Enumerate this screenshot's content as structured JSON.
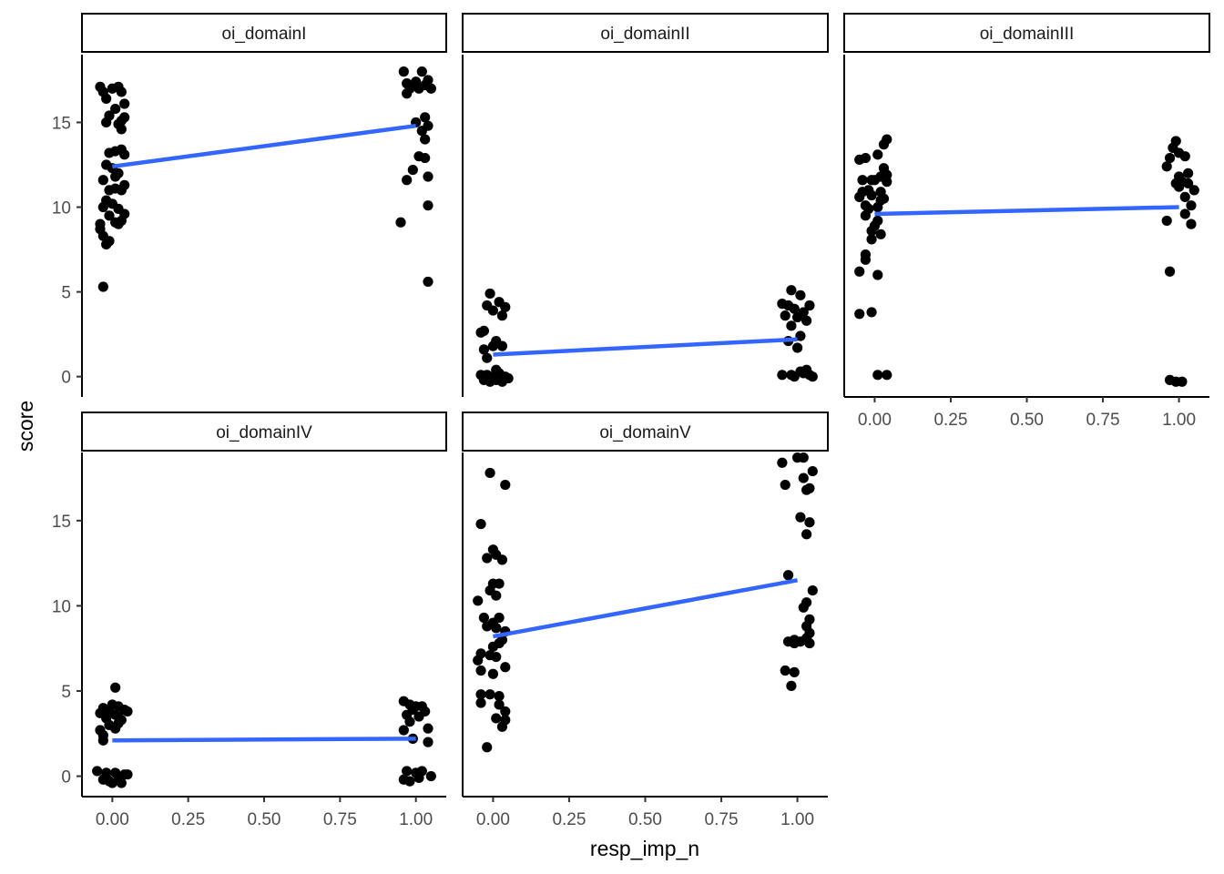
{
  "chart_data": {
    "type": "scatter",
    "xlabel": "resp_imp_n",
    "ylabel": "score",
    "x_ticks": [
      "0.00",
      "0.25",
      "0.50",
      "0.75",
      "1.00"
    ],
    "y_ticks": [
      "0",
      "5",
      "10",
      "15"
    ],
    "xlim": [
      -0.1,
      1.1
    ],
    "fit_color": "#3366FF",
    "point_color": "#000000",
    "panels": [
      {
        "name": "oi_domainI",
        "ylim": [
          -1.2,
          19
        ],
        "fit": {
          "x": [
            0,
            1
          ],
          "y": [
            12.4,
            14.8
          ]
        },
        "points": [
          [
            -0.04,
            17.1
          ],
          [
            -0.03,
            16.8
          ],
          [
            0.0,
            17.0
          ],
          [
            0.02,
            17.1
          ],
          [
            0.03,
            16.8
          ],
          [
            -0.02,
            16.4
          ],
          [
            0.04,
            16.1
          ],
          [
            0.01,
            15.8
          ],
          [
            -0.01,
            15.4
          ],
          [
            0.03,
            15.1
          ],
          [
            -0.02,
            15.0
          ],
          [
            0.04,
            15.3
          ],
          [
            0.02,
            14.9
          ],
          [
            0.03,
            14.6
          ],
          [
            -0.01,
            13.2
          ],
          [
            0.01,
            13.3
          ],
          [
            0.03,
            13.4
          ],
          [
            0.04,
            13.1
          ],
          [
            -0.02,
            12.5
          ],
          [
            0.0,
            12.3
          ],
          [
            0.02,
            12.0
          ],
          [
            -0.03,
            11.6
          ],
          [
            0.01,
            11.8
          ],
          [
            0.04,
            11.3
          ],
          [
            -0.01,
            11.0
          ],
          [
            0.01,
            11.1
          ],
          [
            0.03,
            11.0
          ],
          [
            -0.02,
            10.4
          ],
          [
            0.0,
            10.2
          ],
          [
            -0.03,
            10.0
          ],
          [
            0.02,
            9.9
          ],
          [
            0.04,
            9.6
          ],
          [
            -0.01,
            9.5
          ],
          [
            0.01,
            9.1
          ],
          [
            0.03,
            9.2
          ],
          [
            -0.04,
            9.0
          ],
          [
            0.02,
            9.0
          ],
          [
            -0.04,
            8.7
          ],
          [
            -0.03,
            8.3
          ],
          [
            -0.01,
            8.0
          ],
          [
            -0.02,
            7.8
          ],
          [
            -0.03,
            5.3
          ],
          [
            0.96,
            18.0
          ],
          [
            1.02,
            18.0
          ],
          [
            1.04,
            17.5
          ],
          [
            0.97,
            17.3
          ],
          [
            1.0,
            17.4
          ],
          [
            1.03,
            17.2
          ],
          [
            0.98,
            17.0
          ],
          [
            1.01,
            17.0
          ],
          [
            1.05,
            17.0
          ],
          [
            0.97,
            16.7
          ],
          [
            1.0,
            15.0
          ],
          [
            1.03,
            15.3
          ],
          [
            1.04,
            14.8
          ],
          [
            1.02,
            14.5
          ],
          [
            1.03,
            14.0
          ],
          [
            1.01,
            13.0
          ],
          [
            1.03,
            12.9
          ],
          [
            0.99,
            12.2
          ],
          [
            1.04,
            11.8
          ],
          [
            0.97,
            11.6
          ],
          [
            1.04,
            10.1
          ],
          [
            0.95,
            9.1
          ],
          [
            1.04,
            5.6
          ]
        ]
      },
      {
        "name": "oi_domainII",
        "ylim": [
          -1.2,
          19
        ],
        "fit": {
          "x": [
            0,
            1
          ],
          "y": [
            1.3,
            2.2
          ]
        },
        "points": [
          [
            -0.01,
            4.9
          ],
          [
            0.02,
            4.4
          ],
          [
            -0.02,
            4.2
          ],
          [
            0.04,
            4.1
          ],
          [
            0.0,
            3.9
          ],
          [
            0.03,
            3.6
          ],
          [
            -0.03,
            2.7
          ],
          [
            -0.04,
            2.6
          ],
          [
            0.01,
            2.1
          ],
          [
            0.03,
            1.8
          ],
          [
            -0.03,
            1.6
          ],
          [
            0.0,
            1.8
          ],
          [
            -0.02,
            1.1
          ],
          [
            0.01,
            0.4
          ],
          [
            -0.04,
            0.1
          ],
          [
            0.0,
            0.0
          ],
          [
            0.02,
            0.2
          ],
          [
            0.04,
            0.0
          ],
          [
            -0.03,
            -0.2
          ],
          [
            0.01,
            -0.2
          ],
          [
            0.03,
            -0.3
          ],
          [
            -0.01,
            -0.3
          ],
          [
            0.05,
            -0.1
          ],
          [
            -0.02,
            0.1
          ],
          [
            0.02,
            -0.1
          ],
          [
            0.98,
            5.1
          ],
          [
            1.01,
            4.8
          ],
          [
            0.95,
            4.3
          ],
          [
            0.97,
            4.2
          ],
          [
            1.04,
            4.2
          ],
          [
            0.99,
            4.0
          ],
          [
            1.02,
            3.8
          ],
          [
            0.96,
            3.6
          ],
          [
            1.0,
            3.5
          ],
          [
            1.03,
            3.3
          ],
          [
            0.98,
            3.0
          ],
          [
            1.01,
            2.4
          ],
          [
            0.97,
            2.1
          ],
          [
            1.0,
            1.7
          ],
          [
            0.95,
            0.1
          ],
          [
            0.98,
            0.1
          ],
          [
            1.01,
            0.3
          ],
          [
            1.03,
            0.4
          ],
          [
            1.05,
            0.0
          ],
          [
            0.99,
            0.0
          ],
          [
            1.02,
            0.2
          ],
          [
            1.04,
            0.1
          ]
        ]
      },
      {
        "name": "oi_domainIII",
        "ylim": [
          -1.2,
          19
        ],
        "fit": {
          "x": [
            0,
            1
          ],
          "y": [
            9.6,
            10.0
          ]
        },
        "points": [
          [
            0.04,
            14.0
          ],
          [
            0.03,
            13.7
          ],
          [
            0.01,
            13.1
          ],
          [
            -0.05,
            12.8
          ],
          [
            -0.03,
            12.9
          ],
          [
            0.03,
            12.3
          ],
          [
            0.04,
            11.9
          ],
          [
            -0.01,
            11.6
          ],
          [
            0.02,
            11.8
          ],
          [
            -0.04,
            11.6
          ],
          [
            0.0,
            11.6
          ],
          [
            0.04,
            11.5
          ],
          [
            -0.02,
            11.0
          ],
          [
            -0.04,
            10.9
          ],
          [
            0.02,
            10.9
          ],
          [
            -0.01,
            10.7
          ],
          [
            0.02,
            10.4
          ],
          [
            -0.05,
            10.6
          ],
          [
            0.03,
            10.5
          ],
          [
            -0.03,
            10.1
          ],
          [
            0.01,
            10.0
          ],
          [
            -0.02,
            9.9
          ],
          [
            -0.03,
            9.5
          ],
          [
            0.01,
            9.2
          ],
          [
            0.0,
            8.9
          ],
          [
            -0.01,
            8.6
          ],
          [
            0.02,
            8.4
          ],
          [
            -0.01,
            8.1
          ],
          [
            -0.03,
            7.2
          ],
          [
            -0.03,
            6.9
          ],
          [
            -0.05,
            6.2
          ],
          [
            0.01,
            6.0
          ],
          [
            -0.05,
            3.7
          ],
          [
            -0.01,
            3.8
          ],
          [
            0.01,
            0.1
          ],
          [
            0.04,
            0.1
          ],
          [
            0.99,
            13.9
          ],
          [
            0.98,
            13.5
          ],
          [
            1.0,
            13.2
          ],
          [
            1.02,
            13.0
          ],
          [
            0.97,
            12.9
          ],
          [
            0.96,
            12.4
          ],
          [
            1.03,
            12.0
          ],
          [
            1.0,
            11.8
          ],
          [
            1.01,
            11.5
          ],
          [
            0.99,
            11.4
          ],
          [
            1.03,
            11.4
          ],
          [
            1.05,
            11.0
          ],
          [
            1.0,
            11.2
          ],
          [
            1.02,
            10.6
          ],
          [
            1.04,
            10.1
          ],
          [
            1.02,
            9.6
          ],
          [
            0.96,
            9.2
          ],
          [
            1.04,
            9.0
          ],
          [
            0.97,
            6.2
          ],
          [
            0.97,
            -0.2
          ],
          [
            0.99,
            -0.3
          ],
          [
            1.01,
            -0.3
          ]
        ]
      },
      {
        "name": "oi_domainIV",
        "ylim": [
          -1.2,
          19
        ],
        "fit": {
          "x": [
            0,
            1
          ],
          "y": [
            2.1,
            2.2
          ]
        },
        "points": [
          [
            0.01,
            5.2
          ],
          [
            -0.03,
            4.0
          ],
          [
            0.0,
            4.2
          ],
          [
            0.02,
            4.1
          ],
          [
            0.04,
            3.9
          ],
          [
            -0.01,
            3.8
          ],
          [
            -0.04,
            3.7
          ],
          [
            0.05,
            3.8
          ],
          [
            0.01,
            3.6
          ],
          [
            -0.02,
            3.4
          ],
          [
            0.02,
            3.5
          ],
          [
            0.03,
            3.3
          ],
          [
            -0.01,
            3.0
          ],
          [
            0.01,
            2.8
          ],
          [
            -0.04,
            2.7
          ],
          [
            0.02,
            3.1
          ],
          [
            -0.03,
            2.4
          ],
          [
            -0.03,
            2.1
          ],
          [
            -0.05,
            0.3
          ],
          [
            -0.02,
            0.2
          ],
          [
            0.01,
            0.2
          ],
          [
            0.04,
            0.1
          ],
          [
            -0.03,
            -0.2
          ],
          [
            -0.01,
            -0.3
          ],
          [
            0.02,
            -0.2
          ],
          [
            0.03,
            -0.4
          ],
          [
            0.0,
            -0.4
          ],
          [
            -0.02,
            -0.1
          ],
          [
            0.05,
            0.1
          ],
          [
            0.96,
            4.4
          ],
          [
            0.98,
            4.2
          ],
          [
            1.0,
            4.1
          ],
          [
            1.02,
            4.1
          ],
          [
            0.99,
            3.9
          ],
          [
            1.03,
            3.8
          ],
          [
            0.97,
            3.6
          ],
          [
            1.01,
            3.5
          ],
          [
            0.98,
            3.2
          ],
          [
            0.96,
            2.7
          ],
          [
            1.04,
            2.8
          ],
          [
            0.99,
            2.2
          ],
          [
            1.04,
            2.0
          ],
          [
            0.97,
            0.3
          ],
          [
            1.0,
            0.2
          ],
          [
            1.02,
            0.3
          ],
          [
            0.96,
            -0.2
          ],
          [
            0.98,
            -0.3
          ],
          [
            1.01,
            -0.1
          ],
          [
            1.05,
            0.0
          ]
        ]
      },
      {
        "name": "oi_domainV",
        "ylim": [
          -1.2,
          19
        ],
        "fit": {
          "x": [
            0,
            1
          ],
          "y": [
            8.2,
            11.5
          ]
        },
        "points": [
          [
            -0.01,
            17.8
          ],
          [
            0.04,
            17.1
          ],
          [
            -0.04,
            14.8
          ],
          [
            0.0,
            13.3
          ],
          [
            0.01,
            13.0
          ],
          [
            0.03,
            12.7
          ],
          [
            -0.02,
            12.8
          ],
          [
            0.0,
            11.3
          ],
          [
            0.02,
            11.3
          ],
          [
            -0.01,
            10.9
          ],
          [
            0.01,
            10.6
          ],
          [
            -0.05,
            10.3
          ],
          [
            -0.03,
            9.3
          ],
          [
            0.02,
            9.3
          ],
          [
            0.0,
            9.0
          ],
          [
            -0.02,
            8.8
          ],
          [
            0.01,
            8.7
          ],
          [
            0.04,
            8.5
          ],
          [
            0.03,
            8.0
          ],
          [
            0.02,
            7.8
          ],
          [
            0.0,
            7.6
          ],
          [
            -0.04,
            7.2
          ],
          [
            -0.01,
            7.1
          ],
          [
            0.01,
            7.0
          ],
          [
            0.04,
            6.4
          ],
          [
            -0.05,
            6.8
          ],
          [
            -0.04,
            6.2
          ],
          [
            0.0,
            6.0
          ],
          [
            -0.01,
            4.8
          ],
          [
            0.02,
            4.7
          ],
          [
            -0.04,
            4.8
          ],
          [
            0.02,
            4.2
          ],
          [
            -0.04,
            4.3
          ],
          [
            0.04,
            3.8
          ],
          [
            0.01,
            3.4
          ],
          [
            0.04,
            3.3
          ],
          [
            0.03,
            2.9
          ],
          [
            -0.02,
            1.7
          ],
          [
            1.0,
            18.7
          ],
          [
            1.02,
            18.7
          ],
          [
            0.95,
            18.4
          ],
          [
            1.05,
            17.9
          ],
          [
            1.02,
            17.5
          ],
          [
            0.96,
            17.1
          ],
          [
            1.03,
            16.8
          ],
          [
            1.04,
            16.9
          ],
          [
            1.01,
            15.2
          ],
          [
            1.04,
            14.9
          ],
          [
            1.03,
            14.2
          ],
          [
            0.97,
            11.8
          ],
          [
            1.05,
            10.9
          ],
          [
            1.03,
            10.2
          ],
          [
            1.02,
            9.9
          ],
          [
            1.04,
            9.2
          ],
          [
            1.03,
            8.8
          ],
          [
            1.04,
            8.4
          ],
          [
            0.99,
            8.0
          ],
          [
            1.01,
            7.9
          ],
          [
            1.03,
            8.1
          ],
          [
            1.04,
            7.8
          ],
          [
            0.99,
            7.8
          ],
          [
            0.97,
            7.9
          ],
          [
            0.96,
            6.2
          ],
          [
            0.99,
            6.1
          ],
          [
            0.98,
            5.3
          ]
        ]
      }
    ]
  }
}
